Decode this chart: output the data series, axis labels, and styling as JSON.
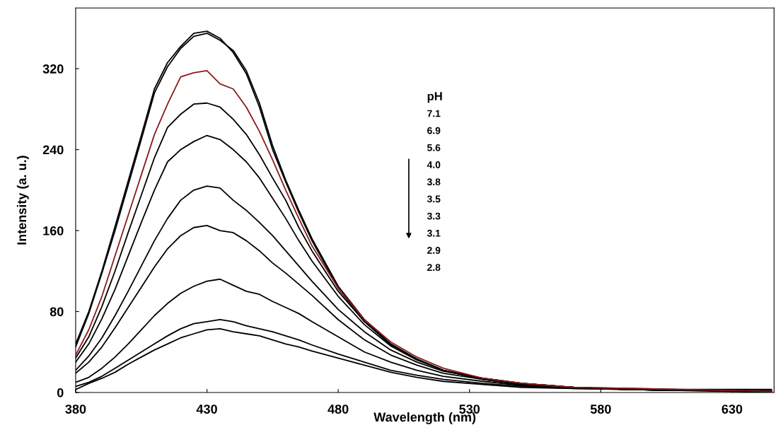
{
  "chart_data": {
    "type": "line",
    "xlabel": "Wavelength (nm)",
    "ylabel": "Intensity (a. u.)",
    "x": [
      380,
      385,
      390,
      395,
      400,
      405,
      410,
      415,
      420,
      425,
      430,
      435,
      440,
      445,
      450,
      455,
      460,
      465,
      470,
      480,
      490,
      500,
      510,
      520,
      535,
      550,
      570,
      590,
      610,
      630,
      645
    ],
    "series": [
      {
        "color": "#000000",
        "values": [
          48,
          80,
          120,
          164,
          209,
          254,
          300,
          326,
          342,
          355,
          357,
          350,
          336,
          315,
          282,
          240,
          208,
          178,
          150,
          103,
          70,
          47,
          33,
          22,
          13,
          8,
          5,
          3,
          2,
          2,
          1
        ]
      },
      {
        "color": "#000000",
        "values": [
          45,
          78,
          118,
          160,
          205,
          250,
          296,
          322,
          340,
          352,
          355,
          348,
          338,
          318,
          286,
          244,
          210,
          180,
          152,
          105,
          72,
          48,
          33,
          22,
          13,
          8,
          5,
          3,
          2,
          2,
          1
        ]
      },
      {
        "color": "#8b1a1a",
        "values": [
          37,
          62,
          95,
          135,
          175,
          215,
          255,
          285,
          312,
          316,
          318,
          305,
          300,
          282,
          258,
          230,
          200,
          172,
          145,
          103,
          72,
          50,
          35,
          24,
          14,
          9,
          5,
          4,
          3,
          2,
          1
        ]
      },
      {
        "color": "#000000",
        "values": [
          34,
          55,
          85,
          120,
          158,
          195,
          232,
          262,
          275,
          285,
          286,
          282,
          270,
          255,
          235,
          212,
          190,
          163,
          140,
          100,
          70,
          48,
          33,
          22,
          14,
          9,
          5,
          3,
          2,
          2,
          1
        ]
      },
      {
        "color": "#000000",
        "values": [
          30,
          48,
          73,
          102,
          135,
          168,
          200,
          228,
          240,
          248,
          254,
          250,
          240,
          228,
          212,
          192,
          172,
          150,
          130,
          95,
          67,
          46,
          32,
          22,
          14,
          9,
          5,
          3,
          2,
          2,
          1
        ]
      },
      {
        "color": "#000000",
        "values": [
          22,
          36,
          54,
          76,
          100,
          125,
          150,
          172,
          190,
          200,
          204,
          202,
          190,
          180,
          168,
          155,
          140,
          125,
          110,
          82,
          60,
          42,
          30,
          21,
          14,
          9,
          5,
          3,
          2,
          2,
          1
        ]
      },
      {
        "color": "#000000",
        "values": [
          19,
          30,
          45,
          64,
          84,
          104,
          124,
          142,
          155,
          163,
          165,
          160,
          158,
          150,
          140,
          128,
          118,
          107,
          96,
          72,
          52,
          37,
          27,
          19,
          13,
          8,
          5,
          3,
          2,
          2,
          1
        ]
      },
      {
        "color": "#000000",
        "values": [
          10,
          15,
          24,
          35,
          48,
          62,
          76,
          88,
          98,
          105,
          110,
          112,
          106,
          100,
          97,
          90,
          84,
          78,
          70,
          55,
          40,
          30,
          22,
          16,
          11,
          7,
          5,
          4,
          3,
          3,
          3
        ]
      },
      {
        "color": "#000000",
        "values": [
          6,
          10,
          16,
          24,
          32,
          40,
          48,
          56,
          63,
          68,
          70,
          72,
          70,
          66,
          63,
          60,
          56,
          52,
          47,
          38,
          30,
          22,
          17,
          13,
          9,
          6,
          4,
          3,
          2,
          2,
          2
        ]
      },
      {
        "color": "#000000",
        "values": [
          3,
          9,
          14,
          20,
          28,
          35,
          42,
          48,
          54,
          58,
          62,
          63,
          60,
          58,
          56,
          52,
          48,
          45,
          41,
          34,
          27,
          20,
          15,
          11,
          8,
          5,
          4,
          3,
          2,
          1,
          0
        ]
      }
    ],
    "annotations": [
      "pH",
      "7.1",
      "6.9",
      "5.6",
      "4.0",
      "3.8",
      "3.5",
      "3.3",
      "3.1",
      "2.9",
      "2.8"
    ],
    "xlim": [
      380,
      646
    ],
    "ylim": [
      0,
      380
    ],
    "xticks": [
      380,
      430,
      480,
      530,
      580,
      630
    ],
    "yticks": [
      0,
      80,
      160,
      240,
      320
    ],
    "grid": false,
    "marker": "none",
    "line_style": "solid"
  }
}
